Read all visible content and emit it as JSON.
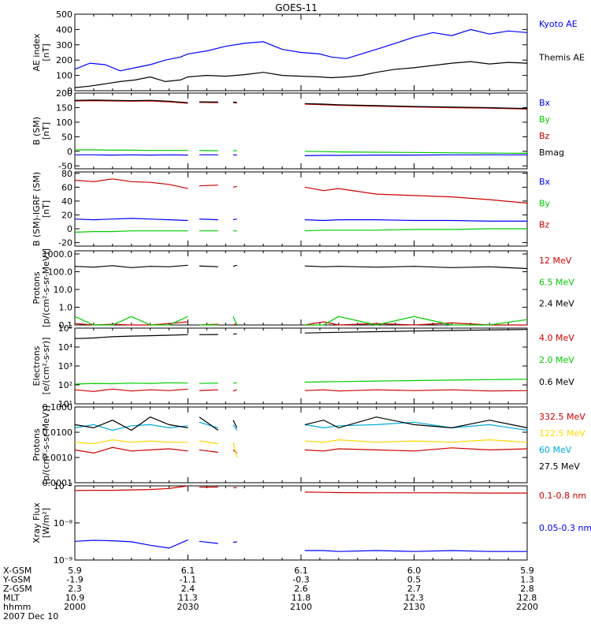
{
  "figure": {
    "title": "GOES-11",
    "date": "2007 Dec 10"
  },
  "chart_data": [
    {
      "type": "line",
      "ylabel": [
        "AE index",
        "[nT]"
      ],
      "ylim": [
        0,
        500
      ],
      "ylog": false,
      "yticks": [
        0,
        100,
        200,
        300,
        400,
        500
      ],
      "yticklabels": [
        "0",
        "100",
        "200",
        "300",
        "400",
        "500"
      ],
      "x": [
        0,
        4,
        8,
        12,
        16,
        20,
        24,
        28,
        30,
        35,
        40,
        45,
        50,
        55,
        60,
        65,
        68,
        72,
        76,
        80,
        85,
        90,
        95,
        100,
        105,
        110,
        115,
        120
      ],
      "series": [
        {
          "name": "Kyoto AE",
          "color": "#0000ff",
          "values": [
            140,
            180,
            170,
            130,
            150,
            170,
            200,
            220,
            240,
            260,
            290,
            310,
            320,
            270,
            250,
            240,
            220,
            210,
            240,
            270,
            310,
            350,
            380,
            360,
            400,
            370,
            390,
            380
          ]
        },
        {
          "name": "Themis AE",
          "color": "#000000",
          "values": [
            20,
            30,
            45,
            60,
            70,
            90,
            60,
            70,
            90,
            100,
            95,
            105,
            120,
            100,
            95,
            90,
            85,
            90,
            100,
            120,
            140,
            150,
            165,
            180,
            190,
            175,
            185,
            180
          ]
        }
      ]
    },
    {
      "type": "line",
      "ylabel": [
        "B (SM)",
        "[nT]"
      ],
      "ylim": [
        -60,
        200
      ],
      "ylog": false,
      "yticks": [
        -50,
        0,
        50,
        100,
        150,
        200
      ],
      "yticklabels": [
        "-50",
        "0",
        "50",
        "100",
        "150",
        "200"
      ],
      "x": [
        0,
        5,
        10,
        15,
        20,
        25,
        30,
        32,
        33,
        38,
        39,
        42,
        43,
        48,
        49,
        60,
        61,
        66,
        70,
        80,
        90,
        100,
        110,
        120
      ],
      "series": [
        {
          "name": "Bx",
          "color": "#0000ff",
          "values": [
            -12,
            -12,
            -13,
            -12,
            -13,
            -12,
            -13,
            null,
            -12,
            -12,
            null,
            -12,
            -13,
            null,
            null,
            null,
            -15,
            -14,
            -14,
            -13,
            -13,
            -12,
            -12,
            -12
          ]
        },
        {
          "name": "By",
          "color": "#00cc00",
          "values": [
            5,
            5,
            4,
            4,
            3,
            3,
            3,
            null,
            3,
            2,
            null,
            2,
            2,
            null,
            null,
            null,
            0,
            -1,
            -2,
            -3,
            -4,
            -5,
            -6,
            -7
          ]
        },
        {
          "name": "Bz",
          "color": "#cc0000",
          "values": [
            173,
            174,
            173,
            172,
            173,
            170,
            165,
            null,
            168,
            167,
            null,
            167,
            166,
            null,
            null,
            null,
            162,
            160,
            158,
            155,
            152,
            150,
            148,
            145
          ]
        },
        {
          "name": "Bmag",
          "color": "#000000",
          "values": [
            175,
            176,
            175,
            174,
            175,
            172,
            167,
            null,
            170,
            169,
            null,
            169,
            168,
            null,
            null,
            null,
            164,
            162,
            160,
            157,
            154,
            152,
            150,
            147
          ]
        }
      ]
    },
    {
      "type": "line",
      "ylabel": [
        "B (SM)-IGRF (SM)",
        "[nT]"
      ],
      "ylim": [
        -25,
        82
      ],
      "ylog": false,
      "yticks": [
        -20,
        0,
        20,
        40,
        60,
        80
      ],
      "yticklabels": [
        "-20",
        "0",
        "20",
        "40",
        "60",
        "80"
      ],
      "x": [
        0,
        5,
        10,
        15,
        20,
        25,
        30,
        32,
        33,
        38,
        39,
        42,
        43,
        48,
        49,
        60,
        61,
        66,
        70,
        80,
        90,
        100,
        110,
        120
      ],
      "series": [
        {
          "name": "Bx",
          "color": "#0000ff",
          "values": [
            14,
            13,
            14,
            15,
            14,
            13,
            12,
            null,
            14,
            13,
            null,
            13,
            14,
            null,
            null,
            null,
            13,
            12,
            13,
            13,
            12,
            12,
            11,
            11
          ]
        },
        {
          "name": "By",
          "color": "#00cc00",
          "values": [
            -5,
            -4,
            -4,
            -3,
            -3,
            -3,
            -3,
            null,
            -3,
            -3,
            null,
            -3,
            -3,
            null,
            null,
            null,
            -3,
            -2,
            -2,
            -2,
            -1,
            -1,
            0,
            0
          ]
        },
        {
          "name": "Bz",
          "color": "#cc0000",
          "values": [
            70,
            68,
            72,
            68,
            67,
            64,
            58,
            null,
            62,
            63,
            null,
            60,
            61,
            null,
            null,
            null,
            60,
            55,
            58,
            50,
            48,
            46,
            42,
            37
          ]
        }
      ]
    },
    {
      "type": "line",
      "ylabel": [
        "Protons",
        "[p/(cm²-s-sr-MeV)]"
      ],
      "ylim": [
        0.1,
        1500
      ],
      "ylog": true,
      "yticks": [
        0.1,
        1,
        10,
        100,
        1000
      ],
      "yticklabels": [
        "0.1",
        "1.0",
        "10.0",
        "100.0",
        "1000.0"
      ],
      "x": [
        0,
        5,
        10,
        15,
        20,
        25,
        30,
        32,
        33,
        38,
        39,
        42,
        43,
        48,
        49,
        60,
        61,
        66,
        70,
        80,
        90,
        100,
        110,
        120
      ],
      "series": [
        {
          "name": "12 MeV",
          "color": "#cc0000",
          "values": [
            0.12,
            0.1,
            0.11,
            0.1,
            0.1,
            0.12,
            0.15,
            null,
            0.1,
            0.11,
            null,
            0.1,
            0.12,
            null,
            null,
            null,
            0.1,
            0.15,
            0.1,
            0.12,
            0.1,
            0.13,
            0.1,
            0.1
          ]
        },
        {
          "name": "6.5 MeV",
          "color": "#00cc00",
          "values": [
            0.3,
            0.1,
            0.1,
            0.3,
            0.1,
            0.1,
            0.3,
            null,
            0.1,
            0.1,
            null,
            0.3,
            0.1,
            null,
            null,
            null,
            0.1,
            0.1,
            0.3,
            0.1,
            0.3,
            0.1,
            0.1,
            0.2
          ]
        },
        {
          "name": "2.4 MeV",
          "color": "#000000",
          "values": [
            200,
            180,
            220,
            170,
            200,
            190,
            230,
            null,
            210,
            190,
            null,
            200,
            230,
            null,
            null,
            null,
            210,
            190,
            200,
            180,
            200,
            170,
            190,
            150
          ]
        }
      ]
    },
    {
      "type": "line",
      "ylabel": [
        "Electrons",
        "[e/(cm²-s-sr)]"
      ],
      "ylim": [
        10,
        100000
      ],
      "ylog": true,
      "yticks": [
        10,
        100,
        1000,
        10000,
        100000
      ],
      "yticklabels": [
        "10¹",
        "10²",
        "10³",
        "10⁴",
        "10⁵"
      ],
      "x": [
        0,
        5,
        10,
        15,
        20,
        25,
        30,
        32,
        33,
        38,
        39,
        42,
        43,
        48,
        49,
        60,
        61,
        66,
        70,
        80,
        90,
        100,
        110,
        120
      ],
      "series": [
        {
          "name": "4.0 MeV",
          "color": "#cc0000",
          "values": [
            55,
            45,
            60,
            48,
            55,
            50,
            60,
            null,
            50,
            55,
            null,
            48,
            55,
            null,
            null,
            null,
            50,
            55,
            48,
            55,
            50,
            55,
            48,
            50
          ]
        },
        {
          "name": "2.0 MeV",
          "color": "#00cc00",
          "values": [
            110,
            120,
            115,
            125,
            120,
            130,
            125,
            null,
            120,
            125,
            null,
            125,
            130,
            null,
            null,
            null,
            140,
            145,
            150,
            160,
            170,
            180,
            190,
            200
          ]
        },
        {
          "name": "0.6 MeV",
          "color": "#000000",
          "values": [
            28000,
            30000,
            35000,
            38000,
            40000,
            42000,
            45000,
            null,
            45000,
            46000,
            null,
            48000,
            50000,
            null,
            null,
            null,
            55000,
            58000,
            60000,
            65000,
            70000,
            75000,
            80000,
            85000
          ]
        }
      ]
    },
    {
      "type": "line",
      "ylabel": [
        "Protons",
        "[p/(cm²-s-sr-MeV)]"
      ],
      "ylim": [
        0.0001,
        0.1
      ],
      "ylog": true,
      "yticks": [
        0.0001,
        0.001,
        0.01,
        0.1
      ],
      "yticklabels": [
        "0.0001",
        "0.0010",
        "0.0100",
        "0.1000"
      ],
      "x": [
        0,
        5,
        10,
        15,
        20,
        25,
        30,
        32,
        33,
        38,
        39,
        42,
        43,
        48,
        49,
        60,
        61,
        66,
        70,
        80,
        90,
        100,
        110,
        120
      ],
      "series": [
        {
          "name": "332.5 MeV",
          "color": "#cc0000",
          "values": [
            0.002,
            0.0015,
            0.0025,
            0.0018,
            0.002,
            0.0022,
            0.0018,
            null,
            0.002,
            0.0016,
            null,
            0.002,
            0.0015,
            null,
            null,
            null,
            0.002,
            0.0018,
            0.0022,
            0.002,
            0.0018,
            0.0024,
            0.002,
            0.0022
          ]
        },
        {
          "name": "122.5 MeV",
          "color": "#ffd700",
          "values": [
            0.004,
            0.0035,
            0.005,
            0.004,
            0.0045,
            0.004,
            0.004,
            null,
            0.0045,
            0.0035,
            null,
            0.004,
            0.001,
            null,
            null,
            null,
            0.0045,
            0.004,
            0.005,
            0.004,
            0.0045,
            0.004,
            0.005,
            0.004
          ]
        },
        {
          "name": "60 MeV",
          "color": "#00aadd",
          "values": [
            0.015,
            0.02,
            0.012,
            0.018,
            0.02,
            0.015,
            0.018,
            null,
            0.025,
            0.015,
            null,
            0.02,
            0.012,
            null,
            null,
            null,
            0.02,
            0.015,
            0.018,
            0.02,
            0.025,
            0.015,
            0.02,
            0.012
          ]
        },
        {
          "name": "27.5 MeV",
          "color": "#000000",
          "values": [
            0.02,
            0.015,
            0.03,
            0.012,
            0.04,
            0.02,
            0.015,
            null,
            0.04,
            0.012,
            null,
            0.03,
            0.015,
            null,
            null,
            null,
            0.02,
            0.03,
            0.015,
            0.04,
            0.02,
            0.015,
            0.03,
            0.015
          ]
        }
      ]
    },
    {
      "type": "line",
      "ylabel": [
        "Xray Flux",
        "[W/m²]"
      ],
      "ylim": [
        1e-09,
        1e-07
      ],
      "ylog": true,
      "yticks": [
        1e-09,
        1e-08,
        1e-07
      ],
      "yticklabels": [
        "10⁻⁹",
        "10⁻⁸",
        "10⁻⁷"
      ],
      "x": [
        0,
        5,
        10,
        15,
        20,
        25,
        30,
        32,
        33,
        38,
        39,
        42,
        43,
        48,
        49,
        60,
        61,
        66,
        70,
        80,
        90,
        100,
        110,
        120
      ],
      "series": [
        {
          "name": "0.1-0.8 nm",
          "color": "#cc0000",
          "values": [
            7.5e-08,
            7.6e-08,
            7.6e-08,
            7.8e-08,
            8e-08,
            8.5e-08,
            1e-07,
            null,
            9.2e-08,
            9.3e-08,
            null,
            9e-08,
            9e-08,
            null,
            null,
            null,
            6.8e-08,
            6.7e-08,
            6.6e-08,
            6.5e-08,
            6.5e-08,
            6.5e-08,
            6.4e-08,
            6.4e-08
          ]
        },
        {
          "name": "0.05-0.3 nm",
          "color": "#0000ff",
          "values": [
            3.2e-09,
            3.4e-09,
            3.3e-09,
            3.1e-09,
            2.5e-09,
            2.1e-09,
            3.5e-09,
            null,
            3.2e-09,
            2.8e-09,
            null,
            3e-09,
            3.1e-09,
            null,
            null,
            null,
            1.8e-09,
            1.8e-09,
            1.7e-09,
            1.8e-09,
            1.7e-09,
            1.8e-09,
            1.7e-09,
            1.7e-09
          ]
        }
      ]
    }
  ],
  "xaxis": {
    "range": [
      0,
      120
    ],
    "ticks": [
      0,
      30,
      60,
      90,
      120
    ],
    "rows": [
      {
        "label": "X-GSM",
        "values": [
          "5.9",
          "6.1",
          "6.1",
          "6.0",
          "5.9"
        ]
      },
      {
        "label": "Y-GSM",
        "values": [
          "-1.9",
          "-1.1",
          "-0.3",
          "0.5",
          "1.3"
        ]
      },
      {
        "label": "Z-GSM",
        "values": [
          "2.3",
          "2.4",
          "2.6",
          "2.7",
          "2.8"
        ]
      },
      {
        "label": "MLT",
        "values": [
          "10.9",
          "11.3",
          "11.8",
          "12.3",
          "12.8"
        ]
      },
      {
        "label": "hhmm",
        "values": [
          "2000",
          "2030",
          "2100",
          "2130",
          "2200"
        ]
      }
    ]
  }
}
